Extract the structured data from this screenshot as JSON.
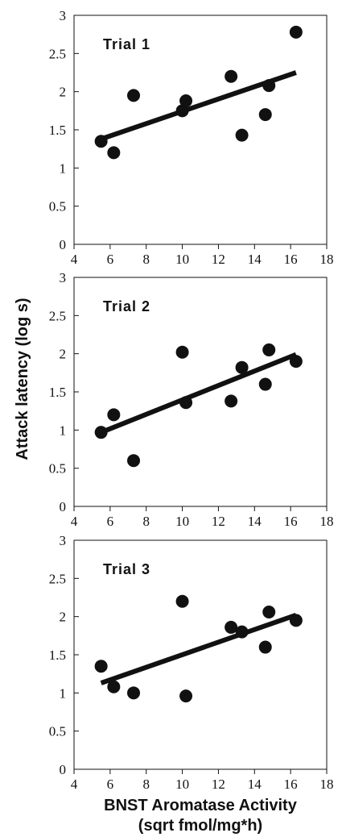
{
  "figure": {
    "ylabel": "Attack latency (log s)",
    "xlabel_line1": "BNST Aromatase Activity",
    "xlabel_line2": "(sqrt fmol/mg*h)"
  },
  "chart_data": [
    {
      "type": "scatter",
      "title": "Trial 1",
      "xlim": [
        4,
        18
      ],
      "ylim": [
        0,
        3
      ],
      "x_ticks": [
        "4",
        "6",
        "8",
        "10",
        "12",
        "14",
        "16",
        "18"
      ],
      "y_ticks": [
        "0",
        "0.5",
        "1",
        "1.5",
        "2",
        "2.5",
        "3"
      ],
      "points": [
        {
          "x": 5.5,
          "y": 1.35
        },
        {
          "x": 6.2,
          "y": 1.2
        },
        {
          "x": 7.3,
          "y": 1.95
        },
        {
          "x": 10.0,
          "y": 1.75
        },
        {
          "x": 10.2,
          "y": 1.88
        },
        {
          "x": 12.7,
          "y": 2.2
        },
        {
          "x": 13.3,
          "y": 1.43
        },
        {
          "x": 14.6,
          "y": 1.7
        },
        {
          "x": 14.8,
          "y": 2.08
        },
        {
          "x": 16.3,
          "y": 2.78
        }
      ],
      "trend": {
        "x": [
          5.5,
          16.3
        ],
        "y": [
          1.38,
          2.25
        ]
      }
    },
    {
      "type": "scatter",
      "title": "Trial 2",
      "xlim": [
        4,
        18
      ],
      "ylim": [
        0,
        3
      ],
      "x_ticks": [
        "4",
        "6",
        "8",
        "10",
        "12",
        "14",
        "16",
        "18"
      ],
      "y_ticks": [
        "0",
        "0.5",
        "1",
        "1.5",
        "2",
        "2.5",
        "3"
      ],
      "points": [
        {
          "x": 5.5,
          "y": 0.97
        },
        {
          "x": 6.2,
          "y": 1.2
        },
        {
          "x": 7.3,
          "y": 0.6
        },
        {
          "x": 10.0,
          "y": 2.02
        },
        {
          "x": 10.2,
          "y": 1.36
        },
        {
          "x": 12.7,
          "y": 1.38
        },
        {
          "x": 13.3,
          "y": 1.82
        },
        {
          "x": 14.6,
          "y": 1.6
        },
        {
          "x": 14.8,
          "y": 2.05
        },
        {
          "x": 16.3,
          "y": 1.9
        }
      ],
      "trend": {
        "x": [
          5.5,
          16.3
        ],
        "y": [
          0.97,
          1.99
        ]
      }
    },
    {
      "type": "scatter",
      "title": "Trial 3",
      "xlim": [
        4,
        18
      ],
      "ylim": [
        0,
        3
      ],
      "x_ticks": [
        "4",
        "6",
        "8",
        "10",
        "12",
        "14",
        "16",
        "18"
      ],
      "y_ticks": [
        "0",
        "0.5",
        "1",
        "1.5",
        "2",
        "2.5",
        "3"
      ],
      "points": [
        {
          "x": 5.5,
          "y": 1.35
        },
        {
          "x": 6.2,
          "y": 1.08
        },
        {
          "x": 7.3,
          "y": 1.0
        },
        {
          "x": 10.0,
          "y": 2.2
        },
        {
          "x": 10.2,
          "y": 0.96
        },
        {
          "x": 12.7,
          "y": 1.86
        },
        {
          "x": 13.3,
          "y": 1.8
        },
        {
          "x": 14.6,
          "y": 1.6
        },
        {
          "x": 14.8,
          "y": 2.06
        },
        {
          "x": 16.3,
          "y": 1.95
        }
      ],
      "trend": {
        "x": [
          5.5,
          16.3
        ],
        "y": [
          1.13,
          2.02
        ]
      }
    }
  ]
}
